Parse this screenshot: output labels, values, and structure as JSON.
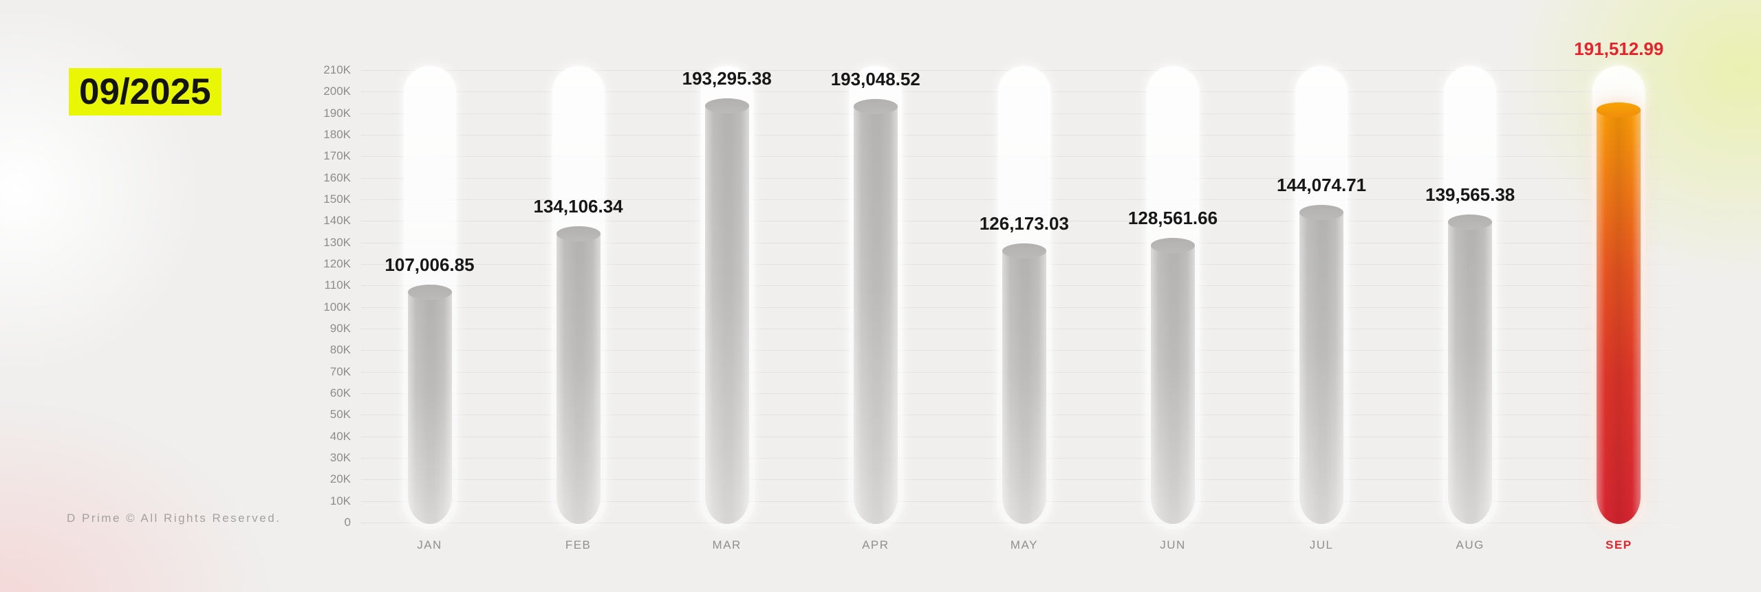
{
  "page": {
    "badge": "09/2025",
    "footer": "D Prime © All Rights Reserved."
  },
  "colors": {
    "badge_bg": "#e9f606",
    "accent_red": "#e8222a",
    "grid_line": "#e2e0df",
    "tick_text": "#8d8c8b",
    "value_text": "#171717",
    "bar_gray": "#c6c5c3",
    "bar_gradient_top": "#f89d04",
    "bar_gradient_bottom": "#d52531",
    "background": "#f0efee"
  },
  "chart_data": {
    "type": "bar",
    "title": "",
    "period_label": "09/2025",
    "categories": [
      "JAN",
      "FEB",
      "MAR",
      "APR",
      "MAY",
      "JUN",
      "JUL",
      "AUG",
      "SEP"
    ],
    "values": [
      107006.85,
      134106.34,
      193295.38,
      193048.52,
      126173.03,
      128561.66,
      144074.71,
      139565.38,
      191512.99
    ],
    "value_labels": [
      "107,006.85",
      "134,106.34",
      "193,295.38",
      "193,048.52",
      "126,173.03",
      "128,561.66",
      "144,074.71",
      "139,565.38",
      "191,512.99"
    ],
    "highlight_index": 8,
    "highlight_category": "SEP",
    "xlabel": "",
    "ylabel": "",
    "ylim": [
      0,
      210000
    ],
    "grid": true,
    "legend": false,
    "y_ticks": [
      "210K",
      "200K",
      "190K",
      "180K",
      "170K",
      "160K",
      "150K",
      "140K",
      "130K",
      "120K",
      "110K",
      "100K",
      "90K",
      "80K",
      "70K",
      "60K",
      "50K",
      "40K",
      "30K",
      "20K",
      "10K",
      "0"
    ]
  }
}
